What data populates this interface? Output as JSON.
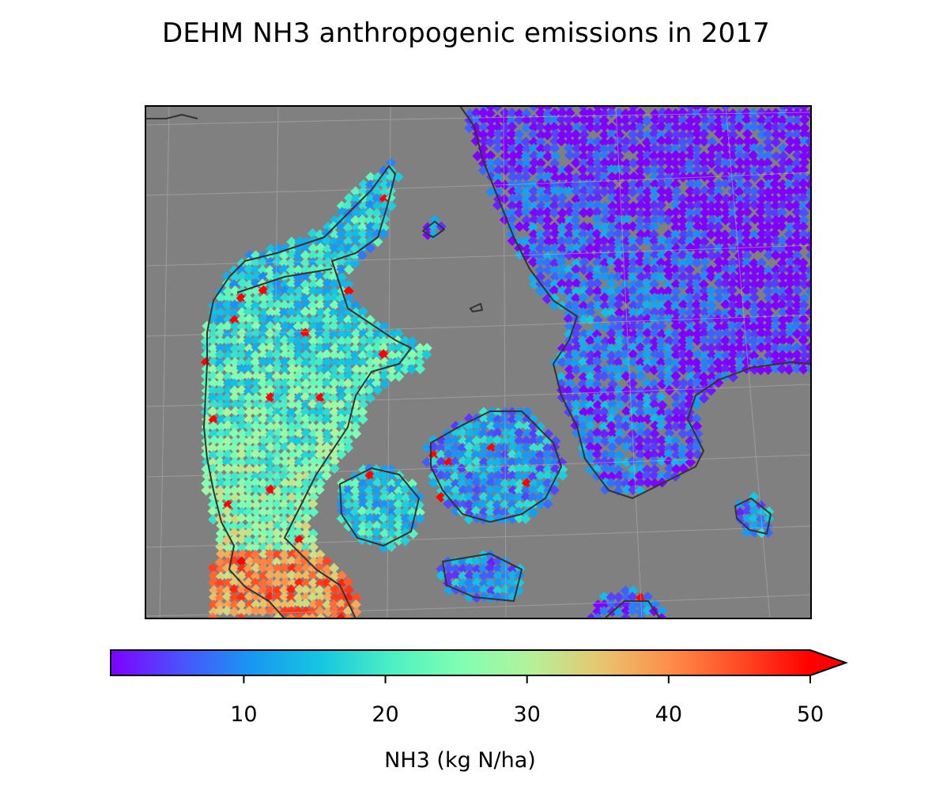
{
  "title": "DEHM NH3 anthropogenic emissions in 2017",
  "colors": {
    "ocean": "#808080",
    "coast": "#333333",
    "graticule": "#b4b4b4",
    "colormap": [
      "#7f00ff",
      "#4a52fc",
      "#1996f3",
      "#15c6e0",
      "#4cefc4",
      "#80feb3",
      "#b3f29a",
      "#e6c670",
      "#ff8d48",
      "#ff4a25",
      "#ff0000"
    ]
  },
  "colorbar": {
    "min": 0.6,
    "max": 50,
    "extend": "max",
    "ticks": [
      10,
      20,
      30,
      40,
      50
    ],
    "tick_labels": [
      "10",
      "20",
      "30",
      "40",
      "50"
    ],
    "label": "NH3 (kg N/ha)"
  }
}
